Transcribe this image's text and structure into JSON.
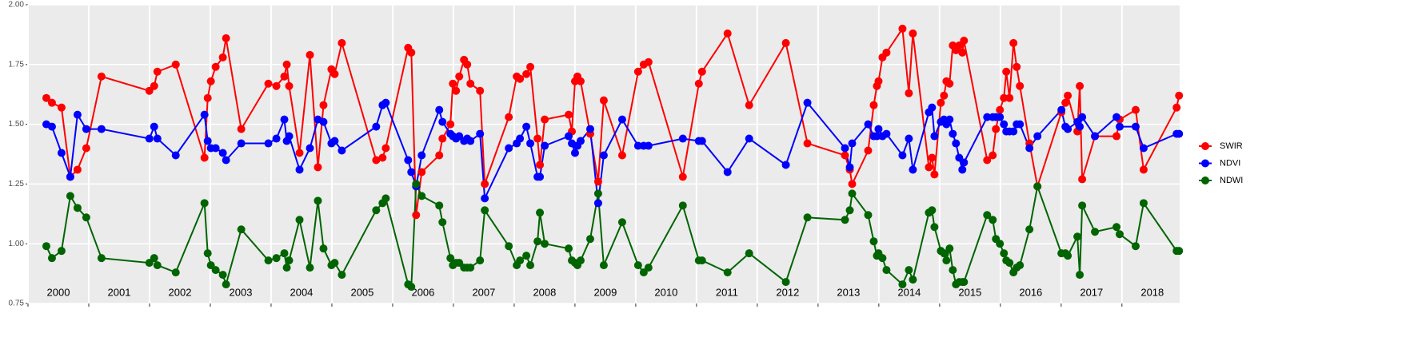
{
  "chart_data": {
    "type": "line",
    "x": [
      2000.302,
      2000.394,
      2000.552,
      2000.696,
      2000.815,
      2000.959,
      2001.209,
      2001.997,
      2002.076,
      2002.129,
      2002.431,
      2002.904,
      2002.957,
      2003.009,
      2003.088,
      2003.206,
      2003.259,
      2003.509,
      2003.955,
      2004.087,
      2004.218,
      2004.258,
      2004.297,
      2004.468,
      2004.639,
      2004.77,
      2004.862,
      2004.993,
      2005.046,
      2005.164,
      2005.729,
      2005.834,
      2005.887,
      2006.255,
      2006.307,
      2006.386,
      2006.478,
      2006.767,
      2006.82,
      2006.951,
      2006.991,
      2007.043,
      2007.096,
      2007.175,
      2007.227,
      2007.28,
      2007.438,
      2007.516,
      2007.911,
      2008.042,
      2008.095,
      2008.2,
      2008.265,
      2008.384,
      2008.423,
      2008.502,
      2008.896,
      2008.949,
      2009.001,
      2009.041,
      2009.093,
      2009.251,
      2009.382,
      2009.474,
      2009.777,
      2010.039,
      2010.131,
      2010.21,
      2010.775,
      2011.038,
      2011.091,
      2011.511,
      2011.866,
      2012.47,
      2012.825,
      2013.443,
      2013.522,
      2013.561,
      2013.824,
      2013.916,
      2013.968,
      2013.995,
      2014.06,
      2014.126,
      2014.389,
      2014.494,
      2014.56,
      2014.823,
      2014.875,
      2014.915,
      2015.02,
      2015.072,
      2015.112,
      2015.164,
      2015.217,
      2015.269,
      2015.322,
      2015.374,
      2015.401,
      2015.782,
      2015.874,
      2015.926,
      2015.992,
      2016.058,
      2016.097,
      2016.15,
      2016.215,
      2016.268,
      2016.321,
      2016.478,
      2016.61,
      2017.004,
      2017.07,
      2017.109,
      2017.267,
      2017.306,
      2017.346,
      2017.556,
      2017.911,
      2017.963,
      2018.226,
      2018.357,
      2018.9,
      2018.94
    ],
    "series": [
      {
        "name": "SWIR",
        "color": "#ff0000",
        "values": [
          1.61,
          1.59,
          1.57,
          1.28,
          1.31,
          1.4,
          1.7,
          1.64,
          1.66,
          1.72,
          1.75,
          1.36,
          1.61,
          1.68,
          1.74,
          1.78,
          1.86,
          1.48,
          1.67,
          1.66,
          1.7,
          1.75,
          1.66,
          1.38,
          1.79,
          1.32,
          1.58,
          1.73,
          1.71,
          1.84,
          1.35,
          1.36,
          1.4,
          1.82,
          1.8,
          1.12,
          1.3,
          1.37,
          1.44,
          1.5,
          1.67,
          1.64,
          1.7,
          1.77,
          1.75,
          1.67,
          1.64,
          1.25,
          1.53,
          1.7,
          1.69,
          1.71,
          1.74,
          1.44,
          1.33,
          1.52,
          1.54,
          1.47,
          1.68,
          1.7,
          1.68,
          1.46,
          1.26,
          1.6,
          1.37,
          1.72,
          1.75,
          1.76,
          1.28,
          1.67,
          1.72,
          1.88,
          1.58,
          1.84,
          1.42,
          1.37,
          1.31,
          1.25,
          1.39,
          1.58,
          1.66,
          1.68,
          1.78,
          1.8,
          1.9,
          1.63,
          1.88,
          1.32,
          1.36,
          1.29,
          1.59,
          1.62,
          1.68,
          1.67,
          1.83,
          1.81,
          1.83,
          1.8,
          1.85,
          1.35,
          1.37,
          1.48,
          1.56,
          1.61,
          1.72,
          1.61,
          1.84,
          1.74,
          1.66,
          1.42,
          1.24,
          1.55,
          1.59,
          1.62,
          1.47,
          1.66,
          1.27,
          1.45,
          1.45,
          1.52,
          1.56,
          1.31,
          1.57,
          1.62
        ]
      },
      {
        "name": "NDVI",
        "color": "#0000ff",
        "values": [
          1.5,
          1.49,
          1.38,
          1.28,
          1.54,
          1.48,
          1.48,
          1.44,
          1.49,
          1.44,
          1.37,
          1.54,
          1.43,
          1.4,
          1.4,
          1.38,
          1.35,
          1.42,
          1.42,
          1.44,
          1.52,
          1.43,
          1.45,
          1.31,
          1.4,
          1.52,
          1.51,
          1.42,
          1.43,
          1.39,
          1.49,
          1.58,
          1.59,
          1.35,
          1.3,
          1.24,
          1.37,
          1.56,
          1.51,
          1.46,
          1.45,
          1.44,
          1.45,
          1.43,
          1.44,
          1.43,
          1.46,
          1.19,
          1.4,
          1.42,
          1.44,
          1.49,
          1.42,
          1.28,
          1.28,
          1.41,
          1.45,
          1.42,
          1.38,
          1.41,
          1.43,
          1.48,
          1.17,
          1.37,
          1.52,
          1.41,
          1.41,
          1.41,
          1.44,
          1.43,
          1.43,
          1.3,
          1.44,
          1.33,
          1.59,
          1.4,
          1.32,
          1.42,
          1.5,
          1.45,
          1.45,
          1.48,
          1.45,
          1.46,
          1.37,
          1.44,
          1.31,
          1.55,
          1.57,
          1.45,
          1.51,
          1.52,
          1.5,
          1.52,
          1.46,
          1.42,
          1.36,
          1.31,
          1.34,
          1.53,
          1.53,
          1.53,
          1.53,
          1.5,
          1.47,
          1.47,
          1.47,
          1.5,
          1.5,
          1.4,
          1.45,
          1.56,
          1.49,
          1.48,
          1.51,
          1.49,
          1.53,
          1.45,
          1.53,
          1.49,
          1.49,
          1.4,
          1.46,
          1.46
        ]
      },
      {
        "name": "NDWI",
        "color": "#006400",
        "values": [
          0.99,
          0.94,
          0.97,
          1.2,
          1.15,
          1.11,
          0.94,
          0.92,
          0.94,
          0.91,
          0.88,
          1.17,
          0.96,
          0.91,
          0.89,
          0.87,
          0.83,
          1.06,
          0.93,
          0.94,
          0.96,
          0.9,
          0.93,
          1.1,
          0.9,
          1.18,
          0.98,
          0.91,
          0.92,
          0.87,
          1.14,
          1.17,
          1.19,
          0.83,
          0.82,
          1.25,
          1.2,
          1.16,
          1.09,
          0.94,
          0.91,
          0.92,
          0.92,
          0.9,
          0.9,
          0.9,
          0.93,
          1.14,
          0.99,
          0.91,
          0.93,
          0.95,
          0.91,
          1.01,
          1.13,
          1.0,
          0.98,
          0.93,
          0.92,
          0.91,
          0.93,
          1.02,
          1.21,
          0.91,
          1.09,
          0.91,
          0.88,
          0.9,
          1.16,
          0.93,
          0.93,
          0.88,
          0.96,
          0.84,
          1.11,
          1.1,
          1.14,
          1.21,
          1.12,
          1.01,
          0.95,
          0.96,
          0.94,
          0.89,
          0.83,
          0.89,
          0.85,
          1.13,
          1.14,
          1.07,
          0.97,
          0.96,
          0.93,
          0.98,
          0.89,
          0.83,
          0.84,
          0.84,
          0.84,
          1.12,
          1.1,
          1.02,
          1.0,
          0.96,
          0.93,
          0.92,
          0.88,
          0.9,
          0.91,
          1.06,
          1.24,
          0.96,
          0.96,
          0.95,
          1.03,
          0.87,
          1.16,
          1.05,
          1.07,
          1.04,
          0.99,
          1.17,
          0.97,
          0.97
        ]
      }
    ],
    "xlim": [
      2000,
      2018.95
    ],
    "xticks": [
      2000,
      2001,
      2002,
      2003,
      2004,
      2005,
      2006,
      2007,
      2008,
      2009,
      2010,
      2011,
      2012,
      2013,
      2014,
      2015,
      2016,
      2017,
      2018
    ],
    "ylim": [
      0.75,
      2.0
    ],
    "yticks": [
      0.75,
      {
        "value": 1,
        "label": "1.00"
      },
      1.25,
      {
        "value": 1.5,
        "label": "1.50"
      },
      1.75,
      {
        "value": 2,
        "label": "2.00"
      }
    ],
    "grid": true,
    "legend": "right"
  }
}
